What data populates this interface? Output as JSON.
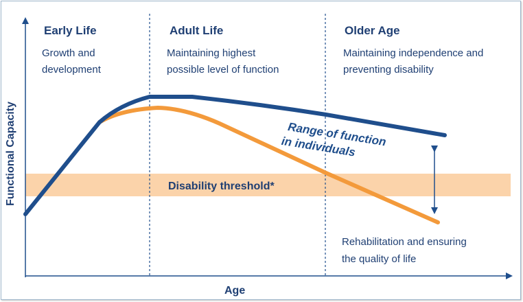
{
  "colors": {
    "primary_blue": "#1f4e8c",
    "orange_line": "#f39a3b",
    "threshold_band": "#fbd3aa",
    "text": "#1f3f73"
  },
  "axes": {
    "y_label": "Functional Capacity",
    "x_label": "Age"
  },
  "phases": [
    {
      "title": "Early Life",
      "description_lines": [
        "Growth and",
        "development"
      ]
    },
    {
      "title": "Adult Life",
      "description_lines": [
        "Maintaining highest",
        "possible level of function"
      ]
    },
    {
      "title": "Older Age",
      "description_lines": [
        "Maintaining independence and",
        "preventing disability"
      ]
    }
  ],
  "threshold_label": "Disability threshold*",
  "range_label_lines": [
    "Range of function",
    "in individuals"
  ],
  "rehab_note_lines": [
    "Rehabilitation and ensuring",
    "the quality of life"
  ]
}
